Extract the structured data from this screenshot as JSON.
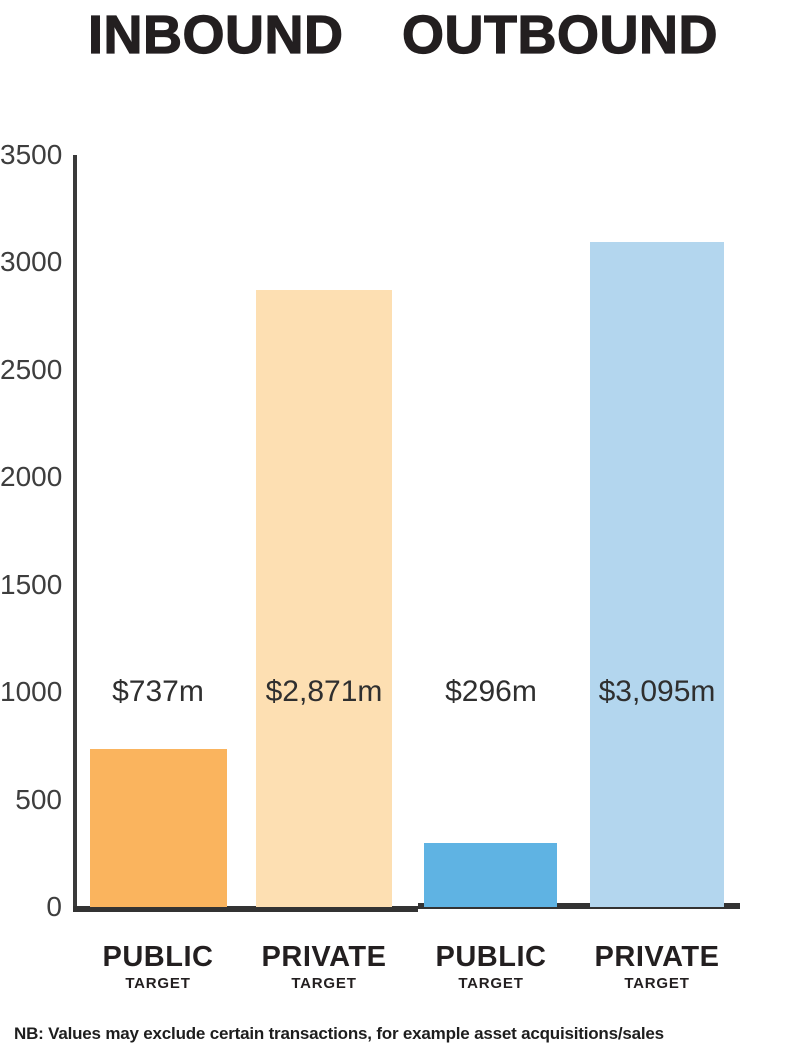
{
  "header": {
    "inbound": "INBOUND",
    "outbound": "OUTBOUND"
  },
  "footnote": "NB: Values may exclude certain transactions, for example asset acquisitions/sales",
  "chart_data": {
    "type": "bar",
    "title": "",
    "groups": [
      "INBOUND",
      "OUTBOUND"
    ],
    "categories": [
      {
        "main": "PUBLIC",
        "sub": "TARGET",
        "group": "INBOUND"
      },
      {
        "main": "PRIVATE",
        "sub": "TARGET",
        "group": "INBOUND"
      },
      {
        "main": "PUBLIC",
        "sub": "TARGET",
        "group": "OUTBOUND"
      },
      {
        "main": "PRIVATE",
        "sub": "TARGET",
        "group": "OUTBOUND"
      }
    ],
    "values": [
      737,
      2871,
      296,
      3095
    ],
    "value_labels": [
      "$737m",
      "$2,871m",
      "$296m",
      "$3,095m"
    ],
    "colors": [
      "#FAB45E",
      "#FDDFB2",
      "#5FB3E3",
      "#B3D6EE"
    ],
    "unit": "$m",
    "ylim": [
      0,
      3500
    ],
    "yticks": [
      3500,
      3000,
      2500,
      2000,
      1500,
      1000,
      500,
      0
    ],
    "ytick_labels": [
      "3500",
      "3000",
      "2500",
      "2000",
      "1500",
      "1000",
      "500",
      "0"
    ],
    "grid": false,
    "legend": false,
    "axis_color": "#3A3A3A",
    "text_color": "#231F20"
  }
}
